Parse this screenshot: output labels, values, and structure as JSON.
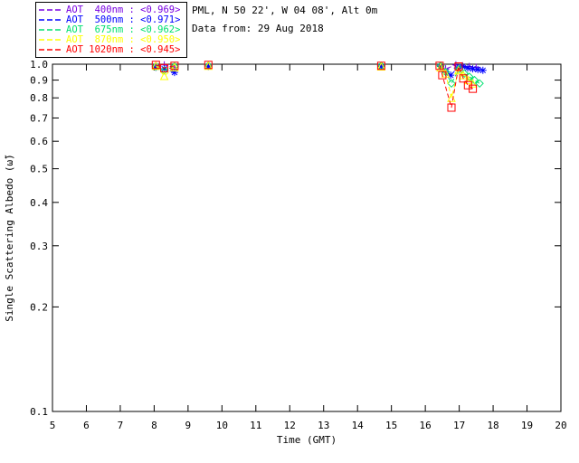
{
  "header": {
    "line1": "PML, N 50 22', W 04 08', Alt 0m",
    "line2": "Data from: 29 Aug 2018"
  },
  "legend": {
    "items": [
      {
        "label": "AOT  400nm : <0.969>",
        "color": "#7800e0"
      },
      {
        "label": "AOT  500nm : <0.971>",
        "color": "#0000ff"
      },
      {
        "label": "AOT  675nm : <0.962>",
        "color": "#00e070"
      },
      {
        "label": "AOT  870nm : <0.950>",
        "color": "#ffff00"
      },
      {
        "label": "AOT 1020nm : <0.945>",
        "color": "#ff0000"
      }
    ]
  },
  "chart_data": {
    "type": "scatter",
    "title": "",
    "xlabel": "Time (GMT)",
    "ylabel": "Single Scattering Albedo (ω̃)",
    "xlim": [
      5,
      20
    ],
    "ylim": [
      0.1,
      1.0
    ],
    "yscale": "log",
    "grid": false,
    "legend_position": "top-left",
    "x_ticks": [
      5,
      6,
      7,
      8,
      9,
      10,
      11,
      12,
      13,
      14,
      15,
      16,
      17,
      18,
      19,
      20
    ],
    "x_tick_labels": [
      "5",
      "6",
      "7",
      "8",
      "9",
      "10",
      "11",
      "12",
      "13",
      "14",
      "15",
      "16",
      "17",
      "18",
      "19",
      "20"
    ],
    "y_ticks": [
      1.0,
      0.9,
      0.8,
      0.7,
      0.6,
      0.5,
      0.4,
      0.3,
      0.2,
      0.1
    ],
    "y_tick_labels": [
      "1.0",
      "0.9",
      "0.8",
      "0.7",
      "0.6",
      "0.5",
      "0.4",
      "0.3",
      "0.2",
      "0.1"
    ],
    "series": [
      {
        "name": "AOT 400nm",
        "daily_mean": "<0.969>",
        "color": "#7800e0",
        "marker": "plus",
        "points": [
          [
            8.05,
            0.99
          ],
          [
            8.3,
            0.995
          ],
          [
            8.6,
            0.98
          ],
          [
            9.6,
            0.99
          ],
          [
            14.7,
            0.99
          ],
          [
            16.45,
            0.99
          ],
          [
            16.6,
            0.97
          ],
          [
            16.9,
            0.995
          ],
          [
            17.1,
            0.99
          ],
          [
            17.3,
            0.985
          ],
          [
            17.5,
            0.98
          ]
        ]
      },
      {
        "name": "AOT 500nm",
        "daily_mean": "<0.971>",
        "color": "#0000ff",
        "marker": "asterisk",
        "points": [
          [
            8.05,
            0.98
          ],
          [
            8.3,
            0.97
          ],
          [
            8.6,
            0.947
          ],
          [
            9.6,
            0.985
          ],
          [
            14.7,
            0.985
          ],
          [
            16.45,
            0.985
          ],
          [
            16.6,
            0.95
          ],
          [
            16.75,
            0.93
          ],
          [
            16.95,
            0.975
          ],
          [
            17.1,
            0.985
          ],
          [
            17.25,
            0.975
          ],
          [
            17.4,
            0.97
          ],
          [
            17.55,
            0.965
          ],
          [
            17.7,
            0.96
          ]
        ]
      },
      {
        "name": "AOT 675nm",
        "daily_mean": "<0.962>",
        "color": "#00e070",
        "marker": "diamond",
        "points": [
          [
            8.05,
            0.985
          ],
          [
            8.3,
            0.96
          ],
          [
            8.6,
            0.985
          ],
          [
            9.6,
            0.99
          ],
          [
            14.7,
            0.99
          ],
          [
            16.45,
            0.99
          ],
          [
            16.6,
            0.95
          ],
          [
            16.77,
            0.88
          ],
          [
            17.0,
            0.97
          ],
          [
            17.15,
            0.94
          ],
          [
            17.3,
            0.92
          ],
          [
            17.45,
            0.9
          ],
          [
            17.6,
            0.88
          ]
        ]
      },
      {
        "name": "AOT 870nm",
        "daily_mean": "<0.950>",
        "color": "#ffff00",
        "marker": "triangle",
        "points": [
          [
            8.05,
            0.99
          ],
          [
            8.3,
            0.925
          ],
          [
            8.6,
            0.98
          ],
          [
            9.6,
            0.99
          ],
          [
            14.7,
            0.985
          ],
          [
            16.45,
            0.98
          ],
          [
            16.6,
            0.94
          ],
          [
            16.77,
            0.8
          ],
          [
            16.98,
            0.96
          ],
          [
            17.12,
            0.93
          ],
          [
            17.27,
            0.9
          ],
          [
            17.4,
            0.88
          ]
        ]
      },
      {
        "name": "AOT 1020nm",
        "daily_mean": "<0.945>",
        "color": "#ff0000",
        "marker": "square",
        "points": [
          [
            8.05,
            0.995
          ],
          [
            8.3,
            0.975
          ],
          [
            8.6,
            0.99
          ],
          [
            9.6,
            0.995
          ],
          [
            14.7,
            0.99
          ],
          [
            16.42,
            0.99
          ],
          [
            16.5,
            0.93
          ],
          [
            16.77,
            0.75
          ],
          [
            16.98,
            0.985
          ],
          [
            17.12,
            0.91
          ],
          [
            17.26,
            0.87
          ],
          [
            17.4,
            0.85
          ]
        ]
      }
    ]
  }
}
